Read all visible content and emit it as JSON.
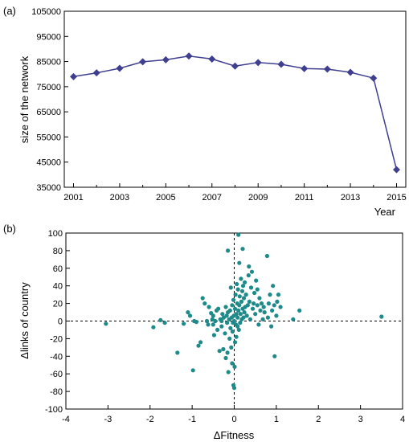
{
  "chart_data": [
    {
      "type": "line",
      "panel_label": "(a)",
      "xlabel": "Year",
      "ylabel": "size of the network",
      "xlim": [
        2000.6,
        2015.4
      ],
      "ylim": [
        35000,
        105000
      ],
      "x_ticks": [
        "2001",
        "2003",
        "2005",
        "2007",
        "2009",
        "2011",
        "2013",
        "2015"
      ],
      "y_ticks": [
        "35000",
        "45000",
        "55000",
        "65000",
        "75000",
        "85000",
        "95000",
        "105000"
      ],
      "grid": false,
      "series_color": "#3f3f8f",
      "marker": "diamond",
      "x": [
        2001,
        2002,
        2003,
        2004,
        2005,
        2006,
        2007,
        2008,
        2009,
        2010,
        2011,
        2012,
        2013,
        2014,
        2015
      ],
      "y": [
        79000,
        80500,
        82300,
        84900,
        85700,
        87200,
        86000,
        83200,
        84600,
        83900,
        82200,
        82000,
        80700,
        78400,
        42000
      ]
    },
    {
      "type": "scatter",
      "panel_label": "(b)",
      "xlabel": "ΔFitness",
      "ylabel": "Δlinks of country",
      "xlim": [
        -4,
        4
      ],
      "ylim": [
        -100,
        100
      ],
      "x_ticks": [
        "-4",
        "-3",
        "-2",
        "-1",
        "0",
        "1",
        "2",
        "3",
        "4"
      ],
      "y_ticks": [
        "-100",
        "-80",
        "-60",
        "-40",
        "-20",
        "0",
        "20",
        "40",
        "60",
        "80",
        "100"
      ],
      "grid": false,
      "reference_lines": {
        "x": 0,
        "y": 0,
        "style": "dashed"
      },
      "point_color": "#1f8a8a",
      "points": [
        [
          -3.05,
          -3
        ],
        [
          -1.92,
          -7
        ],
        [
          -1.75,
          1
        ],
        [
          -1.65,
          -2
        ],
        [
          -1.35,
          -36
        ],
        [
          -1.2,
          -3
        ],
        [
          -1.1,
          10
        ],
        [
          -1.05,
          6
        ],
        [
          -0.98,
          -56
        ],
        [
          -0.95,
          0
        ],
        [
          -0.9,
          -1
        ],
        [
          -0.85,
          -28
        ],
        [
          -0.8,
          -24
        ],
        [
          -0.75,
          26
        ],
        [
          -0.7,
          20
        ],
        [
          -0.65,
          0
        ],
        [
          -0.62,
          -4
        ],
        [
          -0.6,
          16
        ],
        [
          -0.55,
          9
        ],
        [
          -0.52,
          2
        ],
        [
          -0.5,
          -4
        ],
        [
          -0.48,
          -16
        ],
        [
          -0.45,
          0
        ],
        [
          -0.42,
          12
        ],
        [
          -0.4,
          -10
        ],
        [
          -0.38,
          14
        ],
        [
          -0.35,
          -34
        ],
        [
          -0.33,
          2
        ],
        [
          -0.3,
          -6
        ],
        [
          -0.28,
          8
        ],
        [
          -0.26,
          -32
        ],
        [
          -0.25,
          4
        ],
        [
          -0.22,
          -14
        ],
        [
          -0.2,
          16
        ],
        [
          -0.2,
          -42
        ],
        [
          -0.18,
          6
        ],
        [
          -0.17,
          -2
        ],
        [
          -0.16,
          -36
        ],
        [
          -0.15,
          10
        ],
        [
          -0.14,
          -58
        ],
        [
          -0.12,
          2
        ],
        [
          -0.11,
          -20
        ],
        [
          -0.1,
          12
        ],
        [
          -0.09,
          -8
        ],
        [
          -0.08,
          38
        ],
        [
          -0.07,
          -30
        ],
        [
          -0.06,
          4
        ],
        [
          -0.05,
          -48
        ],
        [
          -0.05,
          18
        ],
        [
          -0.04,
          -12
        ],
        [
          -0.03,
          -2
        ],
        [
          -0.02,
          24
        ],
        [
          -0.02,
          -73
        ],
        [
          -0.01,
          6
        ],
        [
          0.0,
          0
        ],
        [
          0.0,
          -76
        ],
        [
          0.01,
          -52
        ],
        [
          0.02,
          14
        ],
        [
          0.02,
          -24
        ],
        [
          0.03,
          30
        ],
        [
          0.04,
          -4
        ],
        [
          0.05,
          8
        ],
        [
          0.05,
          -18
        ],
        [
          0.06,
          42
        ],
        [
          0.07,
          20
        ],
        [
          0.08,
          -6
        ],
        [
          0.08,
          4
        ],
        [
          0.09,
          36
        ],
        [
          0.1,
          12
        ],
        [
          0.1,
          98
        ],
        [
          0.11,
          -10
        ],
        [
          0.12,
          18
        ],
        [
          0.12,
          66
        ],
        [
          0.13,
          28
        ],
        [
          0.14,
          -2
        ],
        [
          0.15,
          8
        ],
        [
          0.16,
          48
        ],
        [
          0.17,
          22
        ],
        [
          0.18,
          2
        ],
        [
          0.19,
          34
        ],
        [
          0.2,
          14
        ],
        [
          0.21,
          40
        ],
        [
          0.22,
          4
        ],
        [
          0.23,
          26
        ],
        [
          0.24,
          10
        ],
        [
          0.25,
          44
        ],
        [
          0.26,
          16
        ],
        [
          0.28,
          30
        ],
        [
          0.3,
          6
        ],
        [
          0.32,
          18
        ],
        [
          0.34,
          52
        ],
        [
          0.36,
          22
        ],
        [
          0.38,
          2
        ],
        [
          0.4,
          38
        ],
        [
          0.42,
          56
        ],
        [
          0.44,
          14
        ],
        [
          0.46,
          20
        ],
        [
          0.48,
          32
        ],
        [
          0.5,
          8
        ],
        [
          0.52,
          46
        ],
        [
          0.55,
          18
        ],
        [
          0.58,
          -4
        ],
        [
          0.6,
          26
        ],
        [
          0.62,
          12
        ],
        [
          0.65,
          20
        ],
        [
          0.68,
          2
        ],
        [
          0.7,
          16
        ],
        [
          0.72,
          10
        ],
        [
          0.78,
          74
        ],
        [
          0.8,
          4
        ],
        [
          0.82,
          20
        ],
        [
          0.85,
          30
        ],
        [
          0.88,
          -6
        ],
        [
          0.9,
          12
        ],
        [
          0.92,
          40
        ],
        [
          0.95,
          18
        ],
        [
          0.96,
          -40
        ],
        [
          1.0,
          6
        ],
        [
          1.02,
          22
        ],
        [
          1.05,
          30
        ],
        [
          1.1,
          16
        ],
        [
          1.4,
          2
        ],
        [
          1.55,
          12
        ],
        [
          3.5,
          5
        ],
        [
          -0.15,
          80
        ],
        [
          0.2,
          82
        ],
        [
          -0.3,
          0
        ],
        [
          0.35,
          62
        ],
        [
          0.55,
          36
        ],
        [
          -0.5,
          6
        ]
      ]
    }
  ]
}
